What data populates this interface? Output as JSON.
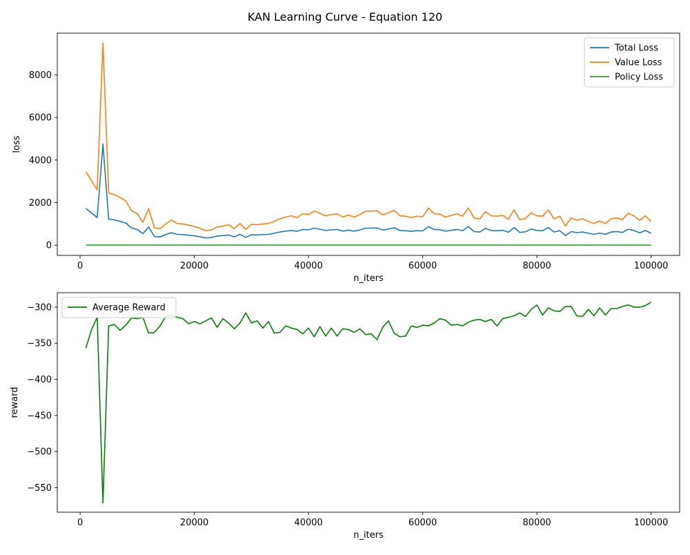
{
  "figure": {
    "title": "KAN Learning Curve - Equation 120"
  },
  "chart_data": [
    {
      "type": "line",
      "xlabel": "n_iters",
      "ylabel": "loss",
      "xlim": [
        -4000,
        105000
      ],
      "ylim": [
        -480,
        9960
      ],
      "xticks": [
        0,
        20000,
        40000,
        60000,
        80000,
        100000
      ],
      "yticks": [
        0,
        2000,
        4000,
        6000,
        8000
      ],
      "legend_position": "top-right",
      "x": [
        1000,
        2000,
        3000,
        4000,
        5000,
        6000,
        7000,
        8000,
        9000,
        10000,
        11000,
        12000,
        13000,
        14000,
        15000,
        16000,
        17000,
        18000,
        19000,
        20000,
        21000,
        22000,
        23000,
        24000,
        25000,
        26000,
        27000,
        28000,
        29000,
        30000,
        31000,
        32000,
        33000,
        34000,
        35000,
        36000,
        37000,
        38000,
        39000,
        40000,
        41000,
        42000,
        43000,
        44000,
        45000,
        46000,
        47000,
        48000,
        49000,
        50000,
        51000,
        52000,
        53000,
        54000,
        55000,
        56000,
        57000,
        58000,
        59000,
        60000,
        61000,
        62000,
        63000,
        64000,
        65000,
        66000,
        67000,
        68000,
        69000,
        70000,
        71000,
        72000,
        73000,
        74000,
        75000,
        76000,
        77000,
        78000,
        79000,
        80000,
        81000,
        82000,
        83000,
        84000,
        85000,
        86000,
        87000,
        88000,
        89000,
        90000,
        91000,
        92000,
        93000,
        94000,
        95000,
        96000,
        97000,
        98000,
        99000,
        100000
      ],
      "series": [
        {
          "name": "Total Loss",
          "color": "#1f77b4",
          "values": [
            1730,
            1510,
            1300,
            4750,
            1230,
            1190,
            1120,
            1040,
            810,
            740,
            540,
            860,
            410,
            390,
            500,
            590,
            510,
            500,
            470,
            440,
            400,
            340,
            360,
            430,
            450,
            480,
            390,
            510,
            370,
            490,
            480,
            500,
            510,
            560,
            620,
            660,
            690,
            650,
            740,
            720,
            800,
            750,
            690,
            720,
            740,
            660,
            710,
            660,
            720,
            800,
            800,
            810,
            710,
            760,
            820,
            690,
            680,
            650,
            680,
            670,
            870,
            740,
            730,
            660,
            700,
            740,
            680,
            870,
            640,
            620,
            790,
            690,
            680,
            700,
            610,
            830,
            600,
            630,
            760,
            690,
            680,
            830,
            620,
            680,
            450,
            640,
            590,
            620,
            560,
            510,
            570,
            510,
            620,
            640,
            600,
            750,
            690,
            580,
            690,
            560
          ]
        },
        {
          "name": "Value Loss",
          "color": "#ff7f0e",
          "values": [
            3450,
            3020,
            2600,
            9500,
            2450,
            2380,
            2240,
            2080,
            1620,
            1480,
            1080,
            1720,
            820,
            780,
            1000,
            1180,
            1020,
            1000,
            940,
            880,
            800,
            680,
            720,
            860,
            900,
            960,
            780,
            1020,
            740,
            980,
            960,
            1000,
            1020,
            1120,
            1240,
            1320,
            1380,
            1300,
            1480,
            1440,
            1600,
            1500,
            1380,
            1440,
            1480,
            1320,
            1420,
            1320,
            1440,
            1600,
            1600,
            1620,
            1420,
            1520,
            1640,
            1380,
            1360,
            1300,
            1360,
            1340,
            1740,
            1480,
            1460,
            1320,
            1400,
            1480,
            1360,
            1740,
            1280,
            1240,
            1580,
            1380,
            1360,
            1400,
            1220,
            1660,
            1200,
            1260,
            1520,
            1380,
            1360,
            1660,
            1240,
            1360,
            900,
            1280,
            1180,
            1240,
            1120,
            1020,
            1140,
            1020,
            1240,
            1280,
            1200,
            1500,
            1380,
            1160,
            1380,
            1120
          ]
        },
        {
          "name": "Policy Loss",
          "color": "#2ca02c",
          "values": [
            3,
            3,
            3,
            3,
            3,
            3,
            3,
            3,
            3,
            3,
            3,
            3,
            3,
            3,
            3,
            3,
            3,
            3,
            3,
            3,
            3,
            3,
            3,
            3,
            3,
            3,
            3,
            3,
            3,
            3,
            3,
            3,
            3,
            3,
            3,
            3,
            3,
            3,
            3,
            3,
            3,
            3,
            3,
            3,
            3,
            3,
            3,
            3,
            3,
            3,
            3,
            3,
            3,
            3,
            3,
            3,
            3,
            3,
            3,
            3,
            3,
            3,
            3,
            3,
            3,
            3,
            3,
            3,
            3,
            3,
            3,
            3,
            3,
            3,
            3,
            3,
            3,
            3,
            3,
            3,
            3,
            3,
            3,
            3,
            3,
            3,
            3,
            3,
            3,
            3,
            3,
            3,
            3,
            3,
            3,
            3,
            3,
            3,
            3,
            3
          ]
        }
      ]
    },
    {
      "type": "line",
      "xlabel": "n_iters",
      "ylabel": "reward",
      "xlim": [
        -4000,
        105000
      ],
      "ylim": [
        -584,
        -280
      ],
      "xticks": [
        0,
        20000,
        40000,
        60000,
        80000,
        100000
      ],
      "yticks": [
        -550,
        -500,
        -450,
        -400,
        -350,
        -300
      ],
      "legend_position": "top-left",
      "x": [
        1000,
        2000,
        3000,
        4000,
        5000,
        6000,
        7000,
        8000,
        9000,
        10000,
        11000,
        12000,
        13000,
        14000,
        15000,
        16000,
        17000,
        18000,
        19000,
        20000,
        21000,
        22000,
        23000,
        24000,
        25000,
        26000,
        27000,
        28000,
        29000,
        30000,
        31000,
        32000,
        33000,
        34000,
        35000,
        36000,
        37000,
        38000,
        39000,
        40000,
        41000,
        42000,
        43000,
        44000,
        45000,
        46000,
        47000,
        48000,
        49000,
        50000,
        51000,
        52000,
        53000,
        54000,
        55000,
        56000,
        57000,
        58000,
        59000,
        60000,
        61000,
        62000,
        63000,
        64000,
        65000,
        66000,
        67000,
        68000,
        69000,
        70000,
        71000,
        72000,
        73000,
        74000,
        75000,
        76000,
        77000,
        78000,
        79000,
        80000,
        81000,
        82000,
        83000,
        84000,
        85000,
        86000,
        87000,
        88000,
        89000,
        90000,
        91000,
        92000,
        93000,
        94000,
        95000,
        96000,
        97000,
        98000,
        99000,
        100000
      ],
      "series": [
        {
          "name": "Average Reward",
          "color": "#008000",
          "values": [
            -357,
            -331,
            -314,
            -571,
            -326,
            -324,
            -332,
            -325,
            -315,
            -316,
            -314,
            -336,
            -335,
            -326,
            -313,
            -311,
            -314,
            -316,
            -323,
            -320,
            -323,
            -319,
            -315,
            -328,
            -316,
            -322,
            -330,
            -322,
            -308,
            -322,
            -319,
            -329,
            -320,
            -336,
            -335,
            -326,
            -329,
            -331,
            -337,
            -329,
            -341,
            -327,
            -340,
            -329,
            -340,
            -330,
            -331,
            -335,
            -330,
            -338,
            -337,
            -345,
            -328,
            -319,
            -336,
            -341,
            -340,
            -326,
            -328,
            -325,
            -326,
            -322,
            -316,
            -318,
            -325,
            -324,
            -326,
            -321,
            -318,
            -317,
            -320,
            -317,
            -326,
            -316,
            -314,
            -312,
            -308,
            -313,
            -303,
            -297,
            -311,
            -301,
            -305,
            -306,
            -299,
            -299,
            -312,
            -313,
            -303,
            -312,
            -301,
            -311,
            -302,
            -302,
            -299,
            -297,
            -300,
            -300,
            -298,
            -293
          ]
        }
      ]
    }
  ]
}
